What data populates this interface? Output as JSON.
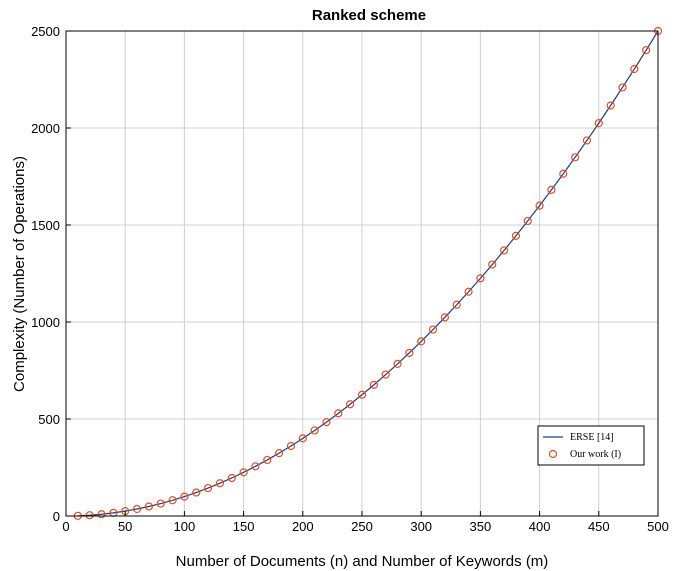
{
  "chart_data": {
    "type": "line",
    "title": "Ranked scheme",
    "xlabel": "Number of Documents (n) and Number of Keywords (m)",
    "ylabel": "Complexity (Number of Operations)",
    "xlim": [
      0,
      500
    ],
    "ylim": [
      0,
      2500
    ],
    "xticks": [
      0,
      50,
      100,
      150,
      200,
      250,
      300,
      350,
      400,
      450,
      500
    ],
    "yticks": [
      0,
      500,
      1000,
      1500,
      2000,
      2500
    ],
    "grid": true,
    "legend_position": "bottom-right",
    "x": [
      10,
      20,
      30,
      40,
      50,
      60,
      70,
      80,
      90,
      100,
      110,
      120,
      130,
      140,
      150,
      160,
      170,
      180,
      190,
      200,
      210,
      220,
      230,
      240,
      250,
      260,
      270,
      280,
      290,
      300,
      310,
      320,
      330,
      340,
      350,
      360,
      370,
      380,
      390,
      400,
      410,
      420,
      430,
      440,
      450,
      460,
      470,
      480,
      490,
      500
    ],
    "series": [
      {
        "name": "ERSE [14]",
        "style": "line",
        "color": "#1f3d7a",
        "values": [
          1,
          4,
          9,
          16,
          25,
          36,
          49,
          64,
          81,
          100,
          121,
          144,
          169,
          196,
          225,
          256,
          289,
          324,
          361,
          400,
          441,
          484,
          529,
          576,
          625,
          676,
          729,
          784,
          841,
          900,
          961,
          1024,
          1089,
          1156,
          1225,
          1296,
          1369,
          1444,
          1521,
          1600,
          1681,
          1764,
          1849,
          1936,
          2025,
          2116,
          2209,
          2304,
          2401,
          2500
        ]
      },
      {
        "name": "Our work (I)",
        "style": "marker",
        "color": "#d9502a",
        "values": [
          1,
          4,
          9,
          16,
          25,
          36,
          49,
          64,
          81,
          100,
          121,
          144,
          169,
          196,
          225,
          256,
          289,
          324,
          361,
          400,
          441,
          484,
          529,
          576,
          625,
          676,
          729,
          784,
          841,
          900,
          961,
          1024,
          1089,
          1156,
          1225,
          1296,
          1369,
          1444,
          1521,
          1600,
          1681,
          1764,
          1849,
          1936,
          2025,
          2116,
          2209,
          2304,
          2401,
          2500
        ]
      }
    ]
  }
}
